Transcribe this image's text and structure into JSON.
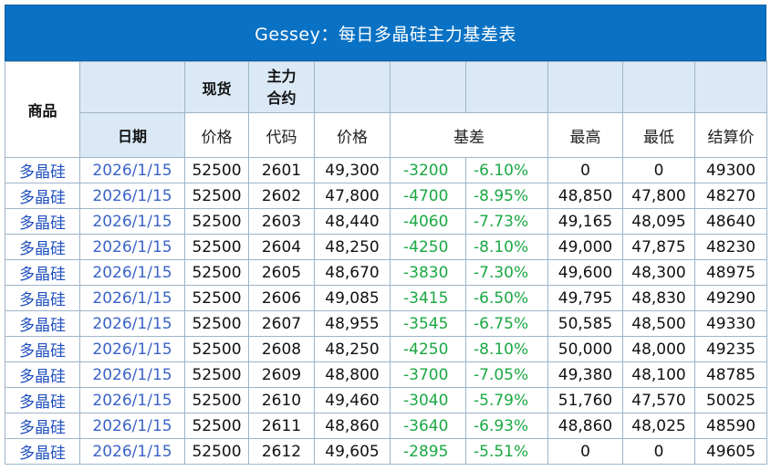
{
  "title": "Gessey：每日多晶硅主力基差表",
  "headers": {
    "product": "商品",
    "spot": "现货",
    "main_line1": "主力",
    "main_line2": "合约",
    "date": "日期",
    "spot_price": "价格",
    "code": "代码",
    "price": "价格",
    "basis": "基差",
    "high": "最高",
    "low": "最低",
    "settle": "结算价"
  },
  "rows": [
    {
      "product": "多晶硅",
      "date": "2026/1/15",
      "spot": "52500",
      "code": "2601",
      "price": "49,300",
      "basis": "-3200",
      "pct": "-6.10%",
      "high": "0",
      "low": "0",
      "settle": "49300"
    },
    {
      "product": "多晶硅",
      "date": "2026/1/15",
      "spot": "52500",
      "code": "2602",
      "price": "47,800",
      "basis": "-4700",
      "pct": "-8.95%",
      "high": "48,850",
      "low": "47,800",
      "settle": "48270"
    },
    {
      "product": "多晶硅",
      "date": "2026/1/15",
      "spot": "52500",
      "code": "2603",
      "price": "48,440",
      "basis": "-4060",
      "pct": "-7.73%",
      "high": "49,165",
      "low": "48,095",
      "settle": "48640"
    },
    {
      "product": "多晶硅",
      "date": "2026/1/15",
      "spot": "52500",
      "code": "2604",
      "price": "48,250",
      "basis": "-4250",
      "pct": "-8.10%",
      "high": "49,000",
      "low": "47,875",
      "settle": "48230"
    },
    {
      "product": "多晶硅",
      "date": "2026/1/15",
      "spot": "52500",
      "code": "2605",
      "price": "48,670",
      "basis": "-3830",
      "pct": "-7.30%",
      "high": "49,600",
      "low": "48,300",
      "settle": "48975"
    },
    {
      "product": "多晶硅",
      "date": "2026/1/15",
      "spot": "52500",
      "code": "2606",
      "price": "49,085",
      "basis": "-3415",
      "pct": "-6.50%",
      "high": "49,795",
      "low": "48,830",
      "settle": "49290"
    },
    {
      "product": "多晶硅",
      "date": "2026/1/15",
      "spot": "52500",
      "code": "2607",
      "price": "48,955",
      "basis": "-3545",
      "pct": "-6.75%",
      "high": "50,585",
      "low": "48,500",
      "settle": "49330"
    },
    {
      "product": "多晶硅",
      "date": "2026/1/15",
      "spot": "52500",
      "code": "2608",
      "price": "48,250",
      "basis": "-4250",
      "pct": "-8.10%",
      "high": "50,000",
      "low": "48,000",
      "settle": "49235"
    },
    {
      "product": "多晶硅",
      "date": "2026/1/15",
      "spot": "52500",
      "code": "2609",
      "price": "48,800",
      "basis": "-3700",
      "pct": "-7.05%",
      "high": "49,380",
      "low": "48,100",
      "settle": "48785"
    },
    {
      "product": "多晶硅",
      "date": "2026/1/15",
      "spot": "52500",
      "code": "2610",
      "price": "49,460",
      "basis": "-3040",
      "pct": "-5.79%",
      "high": "51,760",
      "low": "47,570",
      "settle": "50025"
    },
    {
      "product": "多晶硅",
      "date": "2026/1/15",
      "spot": "52500",
      "code": "2611",
      "price": "48,860",
      "basis": "-3640",
      "pct": "-6.93%",
      "high": "48,860",
      "low": "48,025",
      "settle": "48590"
    },
    {
      "product": "多晶硅",
      "date": "2026/1/15",
      "spot": "52500",
      "code": "2612",
      "price": "49,605",
      "basis": "-2895",
      "pct": "-5.51%",
      "high": "0",
      "low": "0",
      "settle": "49605"
    }
  ]
}
